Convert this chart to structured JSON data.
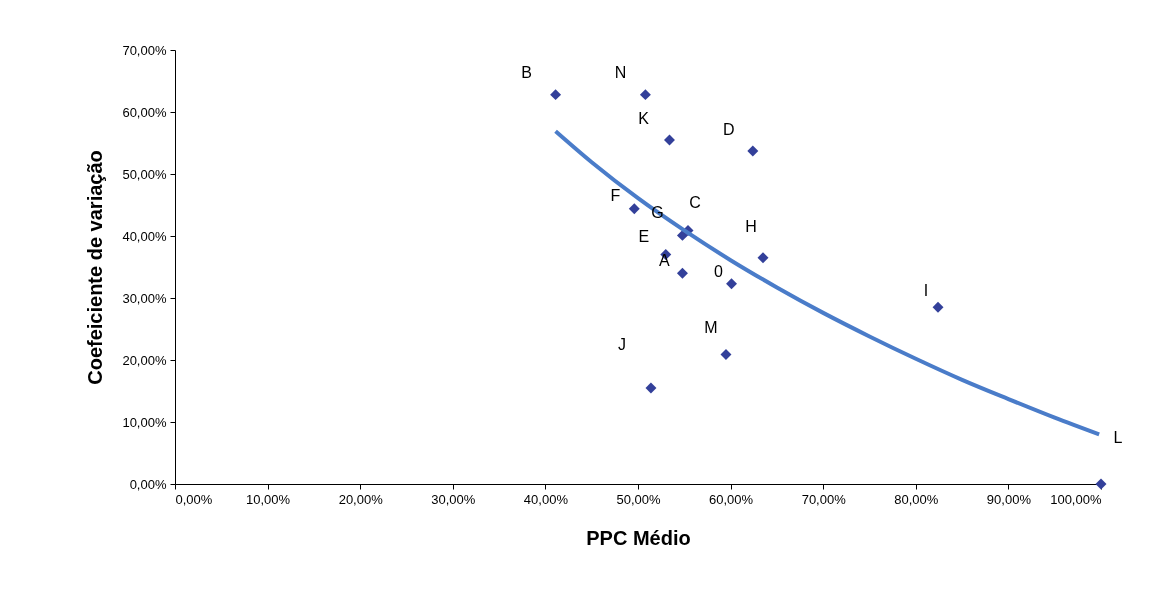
{
  "chart_data": {
    "type": "scatter",
    "xlabel": "PPC Médio",
    "ylabel": "Coefeiciente de variação",
    "grid": false,
    "xlim": [
      0,
      100
    ],
    "ylim": [
      0,
      70
    ],
    "xticks": [
      {
        "value": 0,
        "label": "0,00%"
      },
      {
        "value": 10,
        "label": "10,00%"
      },
      {
        "value": 20,
        "label": "20,00%"
      },
      {
        "value": 30,
        "label": "30,00%"
      },
      {
        "value": 40,
        "label": "40,00%"
      },
      {
        "value": 50,
        "label": "50,00%"
      },
      {
        "value": 60,
        "label": "60,00%"
      },
      {
        "value": 70,
        "label": "70,00%"
      },
      {
        "value": 80,
        "label": "80,00%"
      },
      {
        "value": 90,
        "label": "90,00%"
      },
      {
        "value": 100,
        "label": "100,00%"
      }
    ],
    "yticks": [
      {
        "value": 0,
        "label": "0,00%"
      },
      {
        "value": 10,
        "label": "10,00%"
      },
      {
        "value": 20,
        "label": "20,00%"
      },
      {
        "value": 30,
        "label": "30,00%"
      },
      {
        "value": 40,
        "label": "40,00%"
      },
      {
        "value": 50,
        "label": "50,00%"
      },
      {
        "value": 60,
        "label": "60,00%"
      },
      {
        "value": 70,
        "label": "70,00%"
      }
    ],
    "annotations": [
      {
        "text": "B",
        "x": 41.1,
        "y": 62.8
      },
      {
        "text": "N",
        "x": 50.8,
        "y": 62.8
      },
      {
        "text": "K",
        "x": 53.4,
        "y": 55.5
      },
      {
        "text": "D",
        "x": 62.4,
        "y": 53.7
      },
      {
        "text": "F",
        "x": 49.6,
        "y": 44.4
      },
      {
        "text": "C",
        "x": 55.4,
        "y": 40.9
      },
      {
        "text": "G",
        "x": 54.8,
        "y": 40.1
      },
      {
        "text": "E",
        "x": 53.0,
        "y": 37.0
      },
      {
        "text": "A",
        "x": 54.8,
        "y": 34.0
      },
      {
        "text": "H",
        "x": 63.5,
        "y": 36.5
      },
      {
        "text": "0",
        "x": 60.1,
        "y": 32.3
      },
      {
        "text": "M",
        "x": 59.5,
        "y": 20.9
      },
      {
        "text": "J",
        "x": 51.4,
        "y": 15.5
      },
      {
        "text": "I",
        "x": 82.4,
        "y": 28.5
      },
      {
        "text": "L",
        "x": 100,
        "y": 0
      }
    ],
    "legend": false,
    "series": [
      {
        "color": "#33409a",
        "marker": "diamond",
        "x": [
          41.1,
          50.8,
          53.4,
          62.4,
          49.6,
          55.4,
          54.8,
          53.0,
          54.8,
          63.5,
          60.1,
          59.5,
          51.4,
          82.4,
          100
        ],
        "values": [
          62.8,
          62.8,
          55.5,
          53.7,
          44.4,
          40.9,
          40.1,
          37.0,
          34.0,
          36.5,
          32.3,
          20.9,
          15.5,
          28.5,
          0
        ]
      },
      {
        "type": "line",
        "color": "#4a7cc9",
        "x": [
          41.1,
          45,
          50,
          55,
          60,
          65,
          70,
          75,
          80,
          85,
          90,
          95,
          99.8
        ],
        "values": [
          56.9,
          51.9,
          46.1,
          40.9,
          36.1,
          31.7,
          27.6,
          23.8,
          20.2,
          16.8,
          13.7,
          10.7,
          8.0
        ]
      }
    ]
  }
}
